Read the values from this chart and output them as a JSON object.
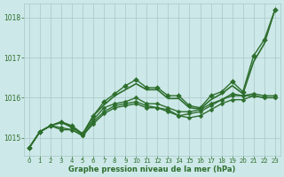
{
  "title": "Graphe pression niveau de la mer (hPa)",
  "background_color": "#cde8e8",
  "grid_color": "#a8c8c8",
  "line_color": "#2d6e2d",
  "xlim": [
    -0.5,
    23.5
  ],
  "ylim": [
    1014.55,
    1018.35
  ],
  "yticks": [
    1015,
    1016,
    1017,
    1018
  ],
  "xticks": [
    0,
    1,
    2,
    3,
    4,
    5,
    6,
    7,
    8,
    9,
    10,
    11,
    12,
    13,
    14,
    15,
    16,
    17,
    18,
    19,
    20,
    21,
    22,
    23
  ],
  "series": [
    {
      "y": [
        1014.75,
        1015.15,
        1015.3,
        1015.4,
        1015.3,
        1015.1,
        1015.55,
        1015.9,
        1016.1,
        1016.3,
        1016.45,
        1016.25,
        1016.25,
        1016.05,
        1016.05,
        1015.8,
        1015.75,
        1016.05,
        1016.15,
        1016.4,
        1016.15,
        1017.05,
        1017.45,
        1018.2
      ],
      "marker": true,
      "linewidth": 1.0,
      "markersize": 3.0
    },
    {
      "y": [
        1014.75,
        1015.15,
        1015.3,
        1015.4,
        1015.25,
        1015.1,
        1015.45,
        1015.75,
        1015.85,
        1015.9,
        1016.0,
        1015.85,
        1015.85,
        1015.75,
        1015.65,
        1015.65,
        1015.7,
        1015.85,
        1015.95,
        1016.1,
        1016.05,
        1016.05,
        1016.0,
        1016.0
      ],
      "marker": true,
      "linewidth": 1.0,
      "markersize": 2.5
    },
    {
      "y": [
        1014.75,
        1015.15,
        1015.3,
        1015.25,
        1015.2,
        1015.05,
        1015.4,
        1015.65,
        1015.8,
        1015.85,
        1015.9,
        1015.8,
        1015.75,
        1015.7,
        1015.55,
        1015.6,
        1015.65,
        1015.8,
        1015.95,
        1016.05,
        1016.05,
        1016.1,
        1016.05,
        1016.05
      ],
      "marker": true,
      "linewidth": 1.0,
      "markersize": 2.5
    },
    {
      "y": [
        1014.75,
        1015.15,
        1015.3,
        1015.2,
        1015.2,
        1015.05,
        1015.35,
        1015.6,
        1015.75,
        1015.8,
        1015.85,
        1015.75,
        1015.75,
        1015.65,
        1015.55,
        1015.5,
        1015.55,
        1015.7,
        1015.85,
        1015.95,
        1015.95,
        1016.05,
        1016.0,
        1016.0
      ],
      "marker": true,
      "linewidth": 1.0,
      "markersize": 2.5
    }
  ],
  "smooth_line": [
    1014.75,
    1015.15,
    1015.3,
    1015.38,
    1015.27,
    1015.08,
    1015.55,
    1015.82,
    1016.05,
    1016.2,
    1016.35,
    1016.2,
    1016.2,
    1015.98,
    1015.98,
    1015.75,
    1015.72,
    1015.95,
    1016.1,
    1016.3,
    1016.1,
    1016.9,
    1017.35,
    1018.2
  ]
}
